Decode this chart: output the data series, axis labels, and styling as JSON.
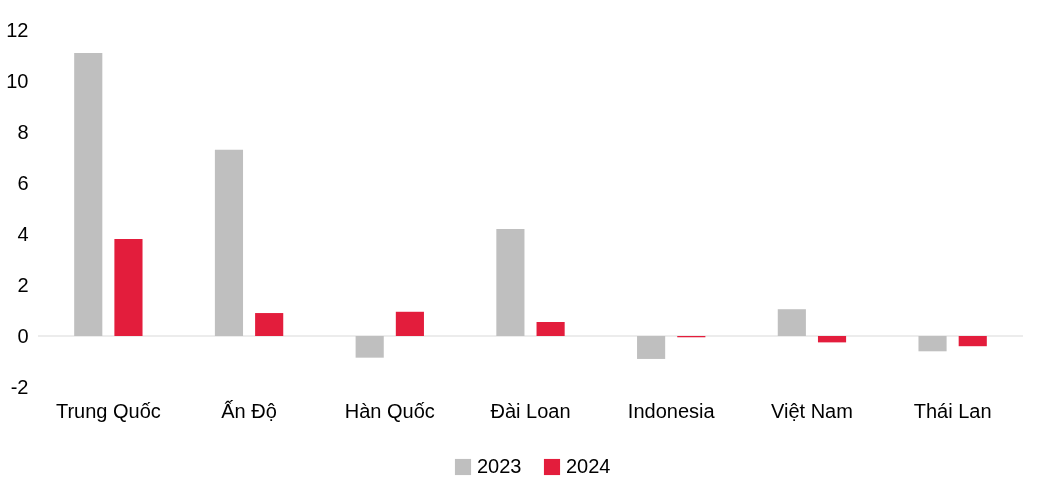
{
  "chart_data": {
    "type": "bar",
    "categories": [
      "Trung Quốc",
      "Ấn Độ",
      "Hàn Quốc",
      "Đài Loan",
      "Indonesia",
      "Việt Nam",
      "Thái Lan"
    ],
    "series": [
      {
        "name": "2023",
        "color": "#bfbfbf",
        "values": [
          11.1,
          7.3,
          -0.85,
          4.2,
          -0.9,
          1.05,
          -0.6
        ]
      },
      {
        "name": "2024",
        "color": "#e31d3c",
        "values": [
          3.8,
          0.9,
          0.95,
          0.55,
          -0.05,
          -0.25,
          -0.4
        ]
      }
    ],
    "ylim": [
      -2,
      12
    ],
    "yticks": [
      -2,
      0,
      2,
      4,
      6,
      8,
      10,
      12
    ],
    "grid": false,
    "legend": "bottom",
    "ref_lines": [
      {
        "axis": "y",
        "value": 0,
        "color": "#d9d9d9"
      }
    ]
  }
}
